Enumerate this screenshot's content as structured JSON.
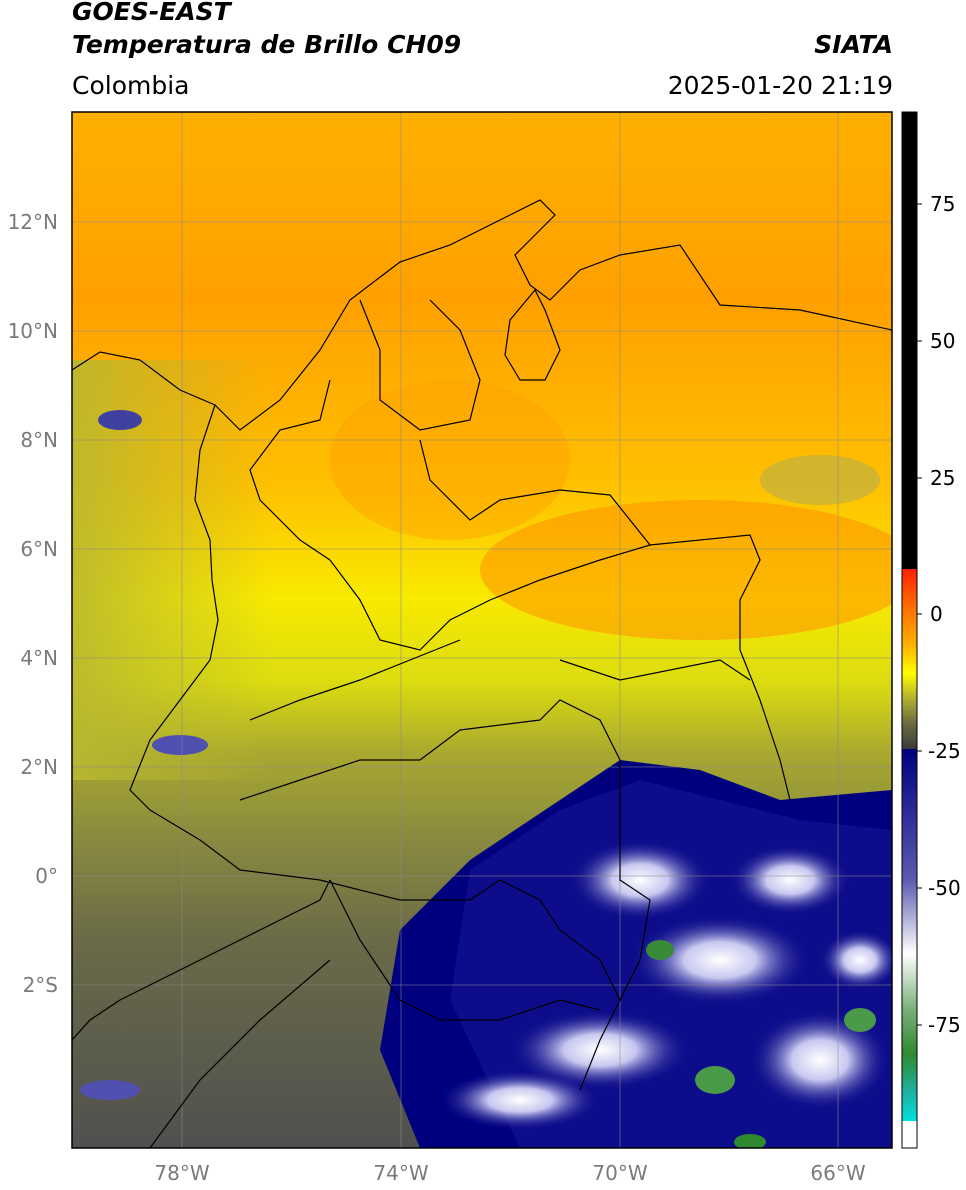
{
  "header": {
    "satellite": "GOES-EAST",
    "product": "Temperatura de Brillo CH09",
    "region": "Colombia",
    "agency": "SIATA",
    "datetime": "2025-01-20 21:19"
  },
  "map": {
    "lat_labels": [
      "12°N",
      "10°N",
      "8°N",
      "6°N",
      "4°N",
      "2°N",
      "0°",
      "2°S"
    ],
    "lon_labels": [
      "78°W",
      "74°W",
      "70°W",
      "66°W"
    ],
    "extent": {
      "lon_min": -80,
      "lon_max": -65,
      "lat_min": -5,
      "lat_max": 14
    }
  },
  "colorbar": {
    "tick_labels": [
      "75",
      "50",
      "25",
      "0",
      "-25",
      "-50",
      "-75"
    ],
    "colors": {
      "black": "#000000",
      "red": "#ff2000",
      "orange": "#ff9a00",
      "yellow": "#ffff00",
      "olive": "#8a8a40",
      "dark_gray": "#444444",
      "navy": "#00007f",
      "white": "#ffffff",
      "green": "#2f8a2f",
      "cyan": "#00d8d8"
    }
  }
}
